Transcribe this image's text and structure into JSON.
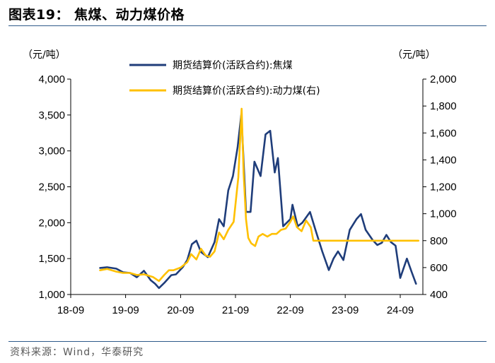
{
  "title": "图表19： 焦煤、动力煤价格",
  "source": "资料来源：Wind，华泰研究",
  "colors": {
    "coking": "#1f3d7a",
    "thermal": "#ffc000",
    "rule": "#2e5a8a"
  },
  "chart_data": {
    "type": "line",
    "left_unit": "（元/吨）",
    "right_unit": "（元/吨）",
    "x_ticks": [
      "18-09",
      "19-09",
      "20-09",
      "21-09",
      "22-09",
      "23-09",
      "24-09"
    ],
    "y_left": {
      "min": 1000,
      "max": 4000,
      "ticks": [
        "1,000",
        "1,500",
        "2,000",
        "2,500",
        "3,000",
        "3,500",
        "4,000"
      ]
    },
    "y_right": {
      "min": 400,
      "max": 2000,
      "ticks": [
        "400",
        "600",
        "800",
        "1,000",
        "1,200",
        "1,400",
        "1,600",
        "1,800",
        "2,000"
      ]
    },
    "legend": [
      "期货结算价(活跃合约):焦煤",
      "期货结算价(活跃合约):动力煤(右)"
    ],
    "series": [
      {
        "name": "期货结算价(活跃合约):焦煤",
        "axis": "left",
        "points": [
          [
            "2019-03-15",
            1370
          ],
          [
            "2019-05-01",
            1380
          ],
          [
            "2019-07-01",
            1360
          ],
          [
            "2019-08-15",
            1310
          ],
          [
            "2019-10-01",
            1300
          ],
          [
            "2019-11-15",
            1240
          ],
          [
            "2020-01-01",
            1330
          ],
          [
            "2020-02-15",
            1200
          ],
          [
            "2020-03-15",
            1150
          ],
          [
            "2020-04-10",
            1090
          ],
          [
            "2020-05-15",
            1160
          ],
          [
            "2020-07-01",
            1270
          ],
          [
            "2020-08-01",
            1280
          ],
          [
            "2020-09-15",
            1380
          ],
          [
            "2020-10-15",
            1480
          ],
          [
            "2020-11-15",
            1700
          ],
          [
            "2020-12-15",
            1750
          ],
          [
            "2021-01-15",
            1590
          ],
          [
            "2021-03-01",
            1520
          ],
          [
            "2021-04-15",
            1730
          ],
          [
            "2021-05-15",
            2050
          ],
          [
            "2021-06-15",
            1950
          ],
          [
            "2021-07-15",
            2450
          ],
          [
            "2021-08-15",
            2650
          ],
          [
            "2021-09-15",
            3050
          ],
          [
            "2021-10-10",
            3510
          ],
          [
            "2021-11-10",
            2150
          ],
          [
            "2021-12-10",
            2150
          ],
          [
            "2022-01-05",
            2850
          ],
          [
            "2022-02-15",
            2650
          ],
          [
            "2022-03-20",
            3230
          ],
          [
            "2022-04-20",
            3280
          ],
          [
            "2022-05-20",
            2700
          ],
          [
            "2022-06-10",
            2900
          ],
          [
            "2022-07-15",
            1950
          ],
          [
            "2022-09-01",
            2050
          ],
          [
            "2022-09-15",
            2250
          ],
          [
            "2022-10-20",
            1950
          ],
          [
            "2022-11-20",
            2000
          ],
          [
            "2023-01-10",
            2150
          ],
          [
            "2023-02-15",
            1900
          ],
          [
            "2023-04-01",
            1600
          ],
          [
            "2023-05-15",
            1340
          ],
          [
            "2023-06-15",
            1500
          ],
          [
            "2023-07-15",
            1600
          ],
          [
            "2023-08-20",
            1480
          ],
          [
            "2023-10-01",
            1900
          ],
          [
            "2023-11-15",
            2050
          ],
          [
            "2023-12-15",
            2120
          ],
          [
            "2024-01-15",
            1900
          ],
          [
            "2024-03-01",
            1760
          ],
          [
            "2024-04-01",
            1690
          ],
          [
            "2024-05-01",
            1720
          ],
          [
            "2024-06-01",
            1830
          ],
          [
            "2024-07-01",
            1730
          ],
          [
            "2024-08-01",
            1680
          ],
          [
            "2024-09-01",
            1230
          ],
          [
            "2024-10-15",
            1500
          ],
          [
            "2024-11-15",
            1320
          ],
          [
            "2024-12-15",
            1150
          ]
        ]
      },
      {
        "name": "期货结算价(活跃合约):动力煤(右)",
        "axis": "right",
        "points": [
          [
            "2019-03-15",
            580
          ],
          [
            "2019-05-01",
            590
          ],
          [
            "2019-07-01",
            570
          ],
          [
            "2019-08-15",
            560
          ],
          [
            "2019-10-01",
            560
          ],
          [
            "2019-11-15",
            545
          ],
          [
            "2020-01-01",
            550
          ],
          [
            "2020-03-01",
            530
          ],
          [
            "2020-04-10",
            500
          ],
          [
            "2020-05-15",
            545
          ],
          [
            "2020-06-15",
            580
          ],
          [
            "2020-07-15",
            580
          ],
          [
            "2020-09-01",
            600
          ],
          [
            "2020-10-15",
            640
          ],
          [
            "2020-11-10",
            700
          ],
          [
            "2020-12-15",
            660
          ],
          [
            "2021-01-15",
            740
          ],
          [
            "2021-02-15",
            690
          ],
          [
            "2021-03-15",
            680
          ],
          [
            "2021-04-15",
            720
          ],
          [
            "2021-05-15",
            860
          ],
          [
            "2021-06-15",
            810
          ],
          [
            "2021-07-15",
            880
          ],
          [
            "2021-08-20",
            940
          ],
          [
            "2021-09-20",
            1270
          ],
          [
            "2021-10-12",
            1780
          ],
          [
            "2021-10-25",
            1300
          ],
          [
            "2021-11-10",
            960
          ],
          [
            "2021-11-25",
            820
          ],
          [
            "2021-12-15",
            780
          ],
          [
            "2022-01-10",
            760
          ],
          [
            "2022-02-01",
            830
          ],
          [
            "2022-03-01",
            850
          ],
          [
            "2022-04-01",
            830
          ],
          [
            "2022-05-01",
            850
          ],
          [
            "2022-06-01",
            850
          ],
          [
            "2022-07-01",
            880
          ],
          [
            "2022-08-01",
            890
          ],
          [
            "2022-09-01",
            940
          ],
          [
            "2022-09-20",
            980
          ],
          [
            "2022-10-15",
            900
          ],
          [
            "2022-11-15",
            870
          ],
          [
            "2022-12-15",
            950
          ],
          [
            "2023-01-15",
            900
          ],
          [
            "2023-02-01",
            800
          ],
          [
            "2024-12-31",
            800
          ]
        ]
      }
    ]
  }
}
